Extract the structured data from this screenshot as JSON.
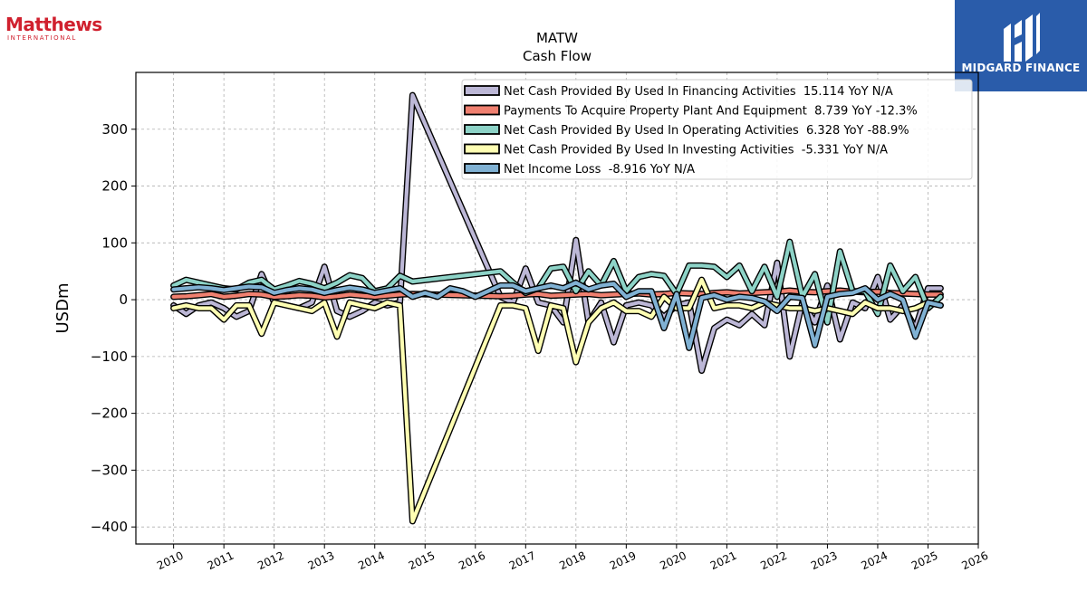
{
  "brand_left": {
    "name": "Matthews",
    "sub": "INTERNATIONAL"
  },
  "brand_right": {
    "name": "MIDGARD FINANCE"
  },
  "chart_data": {
    "type": "line",
    "title": "MATW",
    "subtitle": "Cash Flow",
    "ylabel": "USDm",
    "xlabel": "",
    "xlim": [
      2009.25,
      2026
    ],
    "ylim": [
      -430,
      400
    ],
    "x_ticks": [
      2010,
      2011,
      2012,
      2013,
      2014,
      2015,
      2016,
      2017,
      2018,
      2019,
      2020,
      2021,
      2022,
      2023,
      2024,
      2025,
      2026
    ],
    "y_ticks": [
      -400,
      -300,
      -200,
      -100,
      0,
      100,
      200,
      300
    ],
    "y_tick_labels": [
      "−400",
      "−300",
      "−200",
      "−100",
      "0",
      "100",
      "200",
      "300"
    ],
    "grid": true,
    "legend_position": "top-right",
    "series": [
      {
        "name": "Net Cash Provided By Used In Financing Activities  15.114 YoY N/A",
        "color": "#bcb7d6",
        "x": [
          2010.0,
          2010.25,
          2010.5,
          2010.75,
          2011.0,
          2011.25,
          2011.5,
          2011.75,
          2012.0,
          2012.25,
          2012.5,
          2012.75,
          2013.0,
          2013.25,
          2013.5,
          2013.75,
          2014.0,
          2014.25,
          2014.5,
          2014.75,
          2016.5,
          2016.75,
          2017.0,
          2017.25,
          2017.5,
          2017.75,
          2018.0,
          2018.25,
          2018.5,
          2018.75,
          2019.0,
          2019.25,
          2019.5,
          2019.75,
          2020.0,
          2020.25,
          2020.5,
          2020.75,
          2021.0,
          2021.25,
          2021.5,
          2021.75,
          2022.0,
          2022.25,
          2022.5,
          2022.75,
          2023.0,
          2023.25,
          2023.5,
          2023.75,
          2024.0,
          2024.25,
          2024.5,
          2024.75,
          2025.0,
          2025.25
        ],
        "y": [
          -10,
          -25,
          -10,
          -5,
          -15,
          -30,
          -20,
          45,
          -5,
          -10,
          -15,
          -5,
          58,
          -20,
          -30,
          -20,
          -5,
          -10,
          -5,
          360,
          5,
          -5,
          55,
          -5,
          -10,
          -40,
          105,
          -40,
          -5,
          -75,
          -10,
          -5,
          -10,
          -30,
          -10,
          -5,
          -125,
          -50,
          -35,
          -45,
          -25,
          -45,
          65,
          -100,
          -5,
          -40,
          25,
          -70,
          -5,
          -15,
          40,
          -35,
          -10,
          -50,
          20,
          20
        ]
      },
      {
        "name": "Payments To Acquire Property Plant And Equipment  8.739 YoY -12.3%",
        "color": "#f08070",
        "x": [
          2010.0,
          2010.25,
          2010.5,
          2010.75,
          2011.0,
          2011.25,
          2011.5,
          2011.75,
          2012.0,
          2012.25,
          2012.5,
          2012.75,
          2013.0,
          2013.25,
          2013.5,
          2013.75,
          2014.0,
          2014.25,
          2014.5,
          2014.75,
          2016.5,
          2016.75,
          2017.0,
          2017.25,
          2017.5,
          2017.75,
          2018.0,
          2018.25,
          2018.5,
          2018.75,
          2019.0,
          2019.25,
          2019.5,
          2019.75,
          2020.0,
          2020.25,
          2020.5,
          2020.75,
          2021.0,
          2021.25,
          2021.5,
          2021.75,
          2022.0,
          2022.25,
          2022.5,
          2022.75,
          2023.0,
          2023.25,
          2023.5,
          2023.75,
          2024.0,
          2024.25,
          2024.5,
          2024.75,
          2025.0,
          2025.25
        ],
        "y": [
          5,
          6,
          8,
          10,
          5,
          7,
          10,
          9,
          5,
          6,
          8,
          7,
          4,
          6,
          9,
          7,
          5,
          7,
          9,
          10,
          6,
          7,
          9,
          10,
          7,
          8,
          9,
          10,
          8,
          9,
          10,
          11,
          9,
          10,
          12,
          11,
          10,
          12,
          13,
          11,
          12,
          13,
          14,
          16,
          14,
          13,
          15,
          16,
          14,
          13,
          14,
          12,
          11,
          10,
          9,
          9
        ]
      },
      {
        "name": "Net Cash Provided By Used In Operating Activities  6.328 YoY -88.9%",
        "color": "#8dd3c7",
        "x": [
          2010.0,
          2010.25,
          2010.5,
          2010.75,
          2011.0,
          2011.25,
          2011.5,
          2011.75,
          2012.0,
          2012.25,
          2012.5,
          2012.75,
          2013.0,
          2013.25,
          2013.5,
          2013.75,
          2014.0,
          2014.25,
          2014.5,
          2014.75,
          2016.5,
          2016.75,
          2017.0,
          2017.25,
          2017.5,
          2017.75,
          2018.0,
          2018.25,
          2018.5,
          2018.75,
          2019.0,
          2019.25,
          2019.5,
          2019.75,
          2020.0,
          2020.25,
          2020.5,
          2020.75,
          2021.0,
          2021.25,
          2021.5,
          2021.75,
          2022.0,
          2022.25,
          2022.5,
          2022.75,
          2023.0,
          2023.25,
          2023.5,
          2023.75,
          2024.0,
          2024.25,
          2024.5,
          2024.75,
          2025.0,
          2025.25
        ],
        "y": [
          25,
          35,
          30,
          25,
          20,
          18,
          30,
          35,
          18,
          25,
          33,
          28,
          20,
          30,
          43,
          38,
          15,
          20,
          42,
          32,
          50,
          30,
          12,
          20,
          55,
          58,
          15,
          50,
          25,
          68,
          15,
          40,
          45,
          42,
          10,
          60,
          60,
          58,
          40,
          60,
          15,
          58,
          5,
          102,
          5,
          45,
          -40,
          85,
          15,
          15,
          -25,
          60,
          15,
          40,
          -15,
          5
        ]
      },
      {
        "name": "Net Cash Provided By Used In Investing Activities  -5.331 YoY N/A",
        "color": "#ffffb3",
        "x": [
          2010.0,
          2010.25,
          2010.5,
          2010.75,
          2011.0,
          2011.25,
          2011.5,
          2011.75,
          2012.0,
          2012.25,
          2012.5,
          2012.75,
          2013.0,
          2013.25,
          2013.5,
          2013.75,
          2014.0,
          2014.25,
          2014.5,
          2014.75,
          2016.5,
          2016.75,
          2017.0,
          2017.25,
          2017.5,
          2017.75,
          2018.0,
          2018.25,
          2018.5,
          2018.75,
          2019.0,
          2019.25,
          2019.5,
          2019.75,
          2020.0,
          2020.25,
          2020.5,
          2020.75,
          2021.0,
          2021.25,
          2021.5,
          2021.75,
          2022.0,
          2022.25,
          2022.5,
          2022.75,
          2023.0,
          2023.25,
          2023.5,
          2023.75,
          2024.0,
          2024.25,
          2024.5,
          2024.75,
          2025.0,
          2025.25
        ],
        "y": [
          -15,
          -10,
          -15,
          -15,
          -35,
          -10,
          -10,
          -60,
          -5,
          -10,
          -15,
          -20,
          -5,
          -65,
          -5,
          -10,
          -15,
          -5,
          -10,
          -390,
          -10,
          -10,
          -15,
          -90,
          -10,
          -15,
          -110,
          -40,
          -15,
          -5,
          -20,
          -20,
          -30,
          5,
          -15,
          -15,
          35,
          -15,
          -10,
          -10,
          -15,
          -5,
          -10,
          -15,
          -15,
          -20,
          -15,
          -20,
          -25,
          -5,
          -15,
          -15,
          -20,
          -15,
          -5,
          -10
        ]
      },
      {
        "name": "Net Income Loss  -8.916 YoY N/A",
        "color": "#80b1d3",
        "x": [
          2010.0,
          2010.25,
          2010.5,
          2010.75,
          2011.0,
          2011.25,
          2011.5,
          2011.75,
          2012.0,
          2012.25,
          2012.5,
          2012.75,
          2013.0,
          2013.25,
          2013.5,
          2013.75,
          2014.0,
          2014.25,
          2014.5,
          2014.75,
          2015.0,
          2015.25,
          2015.5,
          2015.75,
          2016.0,
          2016.25,
          2016.5,
          2016.75,
          2017.0,
          2017.25,
          2017.5,
          2017.75,
          2018.0,
          2018.25,
          2018.5,
          2018.75,
          2019.0,
          2019.25,
          2019.5,
          2019.75,
          2020.0,
          2020.25,
          2020.5,
          2020.75,
          2021.0,
          2021.25,
          2021.5,
          2021.75,
          2022.0,
          2022.25,
          2022.5,
          2022.75,
          2023.0,
          2023.25,
          2023.5,
          2023.75,
          2024.0,
          2024.25,
          2024.5,
          2024.75,
          2025.0,
          2025.25
        ],
        "y": [
          18,
          20,
          22,
          20,
          17,
          20,
          23,
          22,
          12,
          17,
          20,
          18,
          12,
          17,
          21,
          18,
          12,
          16,
          20,
          5,
          12,
          5,
          20,
          15,
          5,
          15,
          25,
          25,
          15,
          20,
          25,
          20,
          30,
          18,
          25,
          28,
          5,
          15,
          15,
          -50,
          10,
          -85,
          3,
          8,
          0,
          5,
          3,
          -3,
          -20,
          5,
          3,
          -80,
          5,
          10,
          12,
          20,
          0,
          10,
          0,
          -65,
          -5,
          -10
        ]
      }
    ]
  }
}
